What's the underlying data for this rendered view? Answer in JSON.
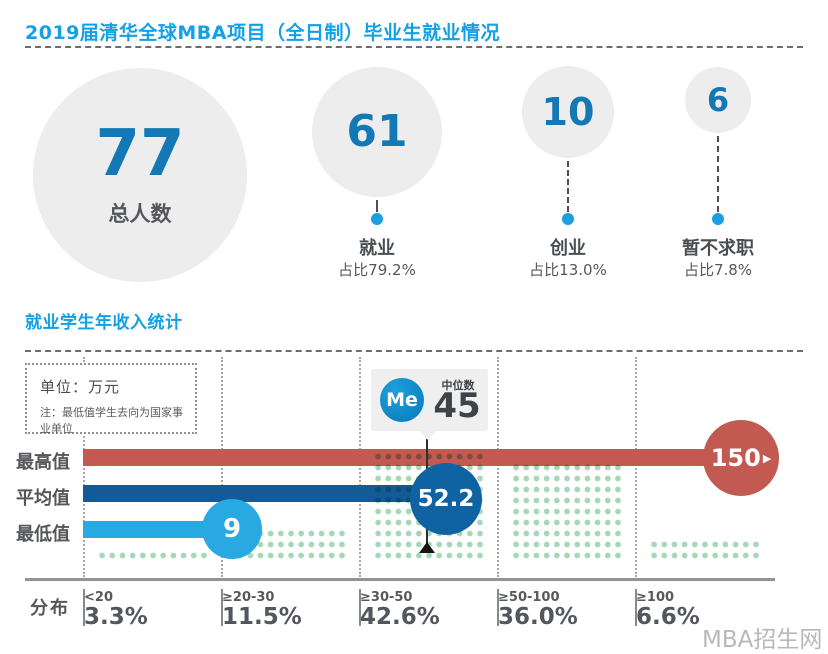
{
  "header": {
    "title": "2019届清华全球MBA项目（全日制）毕业生就业情况"
  },
  "summary": {
    "total": {
      "value": "77",
      "label": "总人数"
    },
    "items": [
      {
        "value": "61",
        "label": "就业",
        "share": "占比79.2%"
      },
      {
        "value": "10",
        "label": "创业",
        "share": "占比13.0%"
      },
      {
        "value": "6",
        "label": "暂不求职",
        "share": "占比7.8%"
      }
    ]
  },
  "income": {
    "title": "就业学生年收入统计",
    "note": {
      "unit": "单位：万元",
      "remark": "注：最低值学生去向为国家事业单位"
    },
    "median": {
      "badge": "Me",
      "label": "中位数",
      "value": "45"
    },
    "rows": [
      {
        "label": "最高值",
        "value": "150",
        "arrow": "▶"
      },
      {
        "label": "平均值",
        "value": "52.2"
      },
      {
        "label": "最低值",
        "value": "9"
      }
    ],
    "distribution": {
      "label": "分布",
      "columns": [
        {
          "range": "<20",
          "pct": "3.3%",
          "dot_rows": 1
        },
        {
          "range": "≥20-30",
          "pct": "11.5%",
          "dot_rows": 3
        },
        {
          "range": "≥30-50",
          "pct": "42.6%",
          "dot_rows": 10
        },
        {
          "range": "≥50-100",
          "pct": "36.0%",
          "dot_rows": 9
        },
        {
          "range": "≥100",
          "pct": "6.6%",
          "dot_rows": 2
        }
      ]
    }
  },
  "watermark": "MBA招生网",
  "colors": {
    "accent_blue": "#12a0e6",
    "number_blue": "#1478b4",
    "circle_gray": "#ededee",
    "bar_max_red": "#c25a52",
    "bar_avg_blue": "#135a96",
    "bar_min_blue": "#29a9e1",
    "median_me_blue": "#1590d2",
    "dot_green": "#a6d7b8"
  },
  "chart_data": [
    {
      "type": "bar",
      "title": "2019届清华全球MBA项目（全日制）毕业生就业情况",
      "categories": [
        "总人数",
        "就业",
        "创业",
        "暂不求职"
      ],
      "values": [
        77,
        61,
        10,
        6
      ],
      "share_pct": [
        null,
        79.2,
        13.0,
        7.8
      ],
      "legend_position": "none",
      "grid": false
    },
    {
      "type": "bar",
      "title": "就业学生年收入统计",
      "categories": [
        "最高值",
        "平均值",
        "中位数",
        "最低值"
      ],
      "values": [
        150,
        52.2,
        45,
        9
      ],
      "ylabel": "万元",
      "annotations": [
        "单位：万元",
        "注：最低值学生去向为国家事业单位"
      ],
      "grid": true
    },
    {
      "type": "bar",
      "title": "分布",
      "categories": [
        "<20",
        "≥20-30",
        "≥30-50",
        "≥50-100",
        "≥100"
      ],
      "values": [
        3.3,
        11.5,
        42.6,
        36.0,
        6.6
      ],
      "ylabel": "%",
      "ylim": [
        0,
        50
      ],
      "grid": false
    }
  ]
}
